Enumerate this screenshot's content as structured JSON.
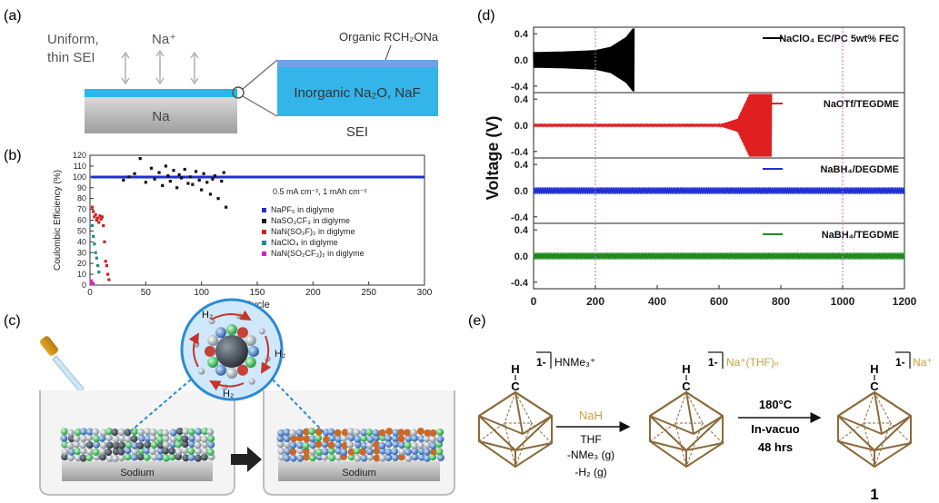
{
  "figure": {
    "panel_labels": [
      "(a)",
      "(b)",
      "(c)",
      "(d)",
      "(e)"
    ]
  },
  "panel_a": {
    "uniform_line1": "Uniform,",
    "uniform_line2": "thin SEI",
    "na_plus": "Na⁺",
    "na_block": "Na",
    "organic": "Organic RCH₂ONa",
    "inorganic": "Inorganic Na₂O, NaF",
    "sei": "SEI",
    "colors": {
      "sei_film": "#29b6e8",
      "na_metal": "#bfbfbf",
      "sei_box": "#33b5ea"
    }
  },
  "panel_b": {
    "condition": "0.5 mA cm⁻², 1 mAh cm⁻²",
    "chart_data": {
      "type": "scatter",
      "xlabel": "Cycle",
      "ylabel": "Coulombic Efficiency (%)",
      "xlim": [
        0,
        300
      ],
      "ylim": [
        0,
        120
      ],
      "xticks": [
        0,
        50,
        100,
        150,
        200,
        250,
        300
      ],
      "yticks": [
        0,
        10,
        20,
        30,
        40,
        50,
        60,
        70,
        80,
        90,
        100,
        110,
        120
      ],
      "legend_position": "right-middle",
      "series": [
        {
          "name": "NaPF₆ in diglyme",
          "color": "#1f2fd1",
          "x": [
            1,
            300
          ],
          "y": [
            99.9,
            99.9
          ]
        },
        {
          "name": "NaSO₃CF₃ in diglyme",
          "color": "#111111",
          "x": [
            30,
            35,
            40,
            45,
            50,
            55,
            58,
            62,
            65,
            68,
            70,
            72,
            75,
            78,
            80,
            82,
            85,
            88,
            90,
            92,
            95,
            98,
            100,
            102,
            105,
            108,
            110,
            112,
            115,
            118,
            120,
            122
          ],
          "y": [
            97,
            100,
            103,
            117,
            95,
            108,
            98,
            104,
            92,
            110,
            101,
            96,
            106,
            90,
            102,
            99,
            107,
            94,
            100,
            93,
            105,
            97,
            88,
            103,
            95,
            84,
            98,
            101,
            80,
            96,
            104,
            72
          ]
        },
        {
          "name": "NaN(SO₂F)₂ in diglyme",
          "color": "#d32020",
          "x": [
            2,
            3,
            4,
            5,
            6,
            7,
            8,
            9,
            10,
            11,
            12,
            13,
            14,
            15,
            16,
            17
          ],
          "y": [
            72,
            68,
            63,
            65,
            60,
            62,
            58,
            64,
            61,
            63,
            55,
            40,
            22,
            18,
            10,
            5
          ]
        },
        {
          "name": "NaClO₄ in diglyme",
          "color": "#1a8c8c",
          "x": [
            2,
            3,
            4,
            5,
            6,
            7,
            8
          ],
          "y": [
            55,
            45,
            38,
            30,
            25,
            18,
            12
          ]
        },
        {
          "name": "NaN(SO₂CF₃)₂ in diglyme",
          "color": "#d21fd2",
          "x": [
            1,
            2,
            3
          ],
          "y": [
            4,
            2,
            1
          ]
        }
      ]
    }
  },
  "panel_c": {
    "h2_top": "H₂",
    "h2_right": "H₂",
    "h2_bottom": "H₂",
    "sodium_left": "Sodium",
    "sodium_right": "Sodium"
  },
  "panel_d": {
    "chart_data": {
      "type": "line",
      "xlabel": "",
      "ylabel": "Voltage (V)",
      "xlim": [
        0,
        1200
      ],
      "xticks": [
        0,
        200,
        400,
        600,
        800,
        1000,
        1200
      ],
      "dashed_markers_x": [
        200,
        1000
      ],
      "subplots": [
        {
          "name": "NaClO₄ EC/PC 5wt% FEC",
          "color": "#000000",
          "ylim": [
            -0.5,
            0.5
          ],
          "yticks": [
            0.4,
            0.0,
            -0.4
          ],
          "x": [
            0,
            100,
            200,
            250,
            300,
            325
          ],
          "y_amplitude": [
            0.12,
            0.13,
            0.15,
            0.2,
            0.35,
            0.5
          ]
        },
        {
          "name": "NaOTf/TEGDME",
          "color": "#e02020",
          "ylim": [
            -0.5,
            0.5
          ],
          "yticks": [
            0.4,
            0.0,
            -0.4
          ],
          "x": [
            0,
            600,
            660,
            700,
            740,
            770
          ],
          "y_amplitude": [
            0.01,
            0.01,
            0.1,
            0.5,
            0.5,
            0.5
          ]
        },
        {
          "name": "NaBH₄/DEGDME",
          "color": "#1f2fd1",
          "ylim": [
            -0.5,
            0.5
          ],
          "yticks": [
            0.4,
            0.0,
            -0.4
          ],
          "x": [
            0,
            1200
          ],
          "y_amplitude": [
            0.05,
            0.05
          ]
        },
        {
          "name": "NaBH₄/TEGDME",
          "color": "#1e8a1e",
          "ylim": [
            -0.5,
            0.5
          ],
          "yticks": [
            0.4,
            0.0,
            -0.4
          ],
          "x": [
            0,
            1200
          ],
          "y_amplitude": [
            0.05,
            0.05
          ]
        }
      ]
    }
  },
  "panel_e": {
    "reactant_charge": "1-",
    "reactant_counter": "HNMe₃⁺",
    "h": "H",
    "c": "C",
    "step1_reagent": "NaH",
    "step1_cond1": "THF",
    "step1_cond2": "-NMe₃ (g)",
    "step1_cond3": "-H₂ (g)",
    "intermediate_charge": "1-",
    "intermediate_counter": "Na⁺(THF)ₙ",
    "step2_cond1": "180°C",
    "step2_cond2": "In-vacuo",
    "step2_cond3": "48 hrs",
    "product_charge": "1-",
    "product_counter": "Na⁺",
    "product_number": "1",
    "colors": {
      "cage": "#8a6a3a",
      "sodium_text": "#c8a33a"
    }
  }
}
